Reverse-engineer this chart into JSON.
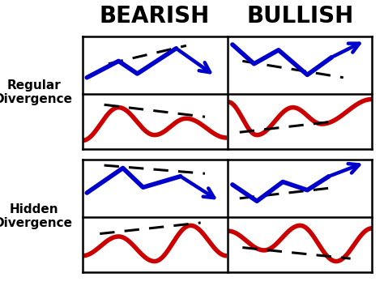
{
  "title_bearish": "BEARISH",
  "title_bullish": "BULLISH",
  "label_regular": "Regular\nDivergence",
  "label_hidden": "Hidden\nDivergence",
  "bg_color": "#ffffff",
  "border_color": "#000000",
  "blue_color": "#0000cc",
  "red_color": "#cc0000",
  "dash_color": "#000000",
  "title_fontsize": 20,
  "label_fontsize": 11,
  "lw_main": 4.0,
  "lw_dash": 2.2
}
